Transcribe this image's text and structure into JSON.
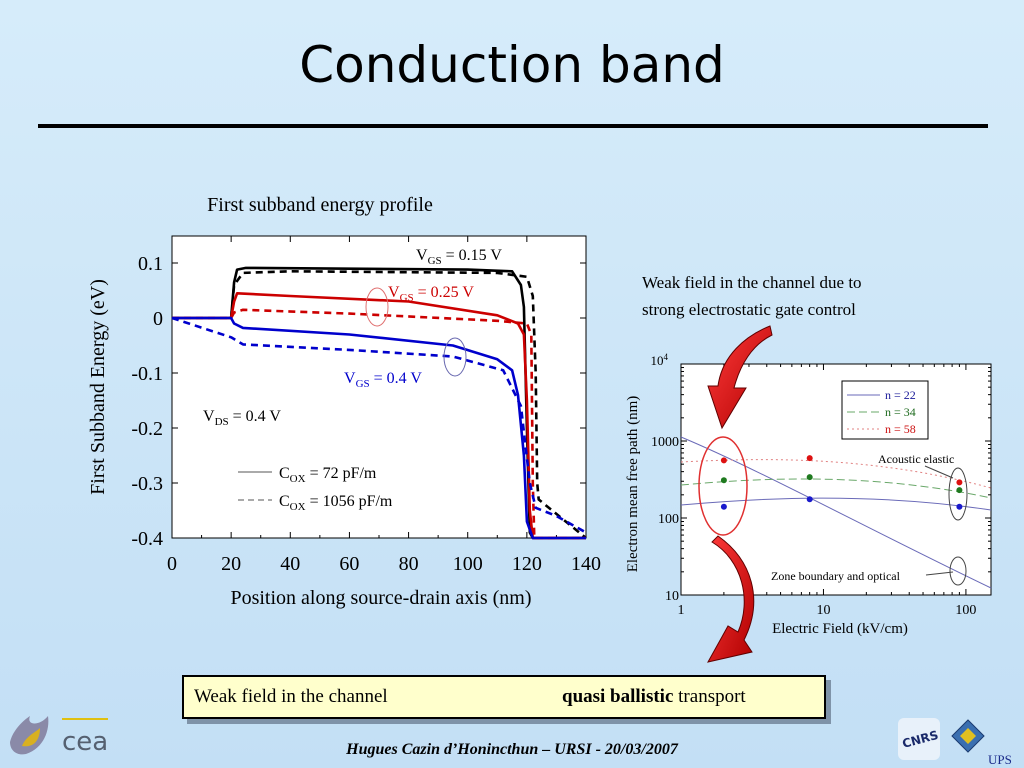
{
  "slide": {
    "title": "Conduction band",
    "footer": "Hugues Cazin d’Honincthun – URSI - 20/03/2007"
  },
  "banner": {
    "left_text": "Weak field in the channel",
    "right_bold": "quasi ballistic",
    "right_text": "transport"
  },
  "logos": {
    "left_logo_text": "cea",
    "right_logo_text": "UPS",
    "cnrs_text": "CNRS"
  },
  "chart_data": [
    {
      "type": "line",
      "title": "First subband energy profile",
      "xlabel": "Position along source-drain axis (nm)",
      "ylabel": "First Subband Energy (eV)",
      "xlim": [
        0,
        140
      ],
      "ylim": [
        -0.4,
        0.12
      ],
      "xticks": [
        "0",
        "20",
        "40",
        "60",
        "80",
        "100",
        "120",
        "140"
      ],
      "yticks": [
        "0.1",
        "0",
        "-0.1",
        "-0.2",
        "-0.3",
        "-0.4"
      ],
      "annotations": {
        "vds": {
          "main": "V",
          "sub": "DS",
          "rest": " = 0.4 V"
        },
        "vgs_015": {
          "main": "V",
          "sub": "GS",
          "rest": " = 0.15 V"
        },
        "vgs_025": {
          "main": "V",
          "sub": "GS",
          "rest": " = 0.25 V"
        },
        "vgs_04": {
          "main": "V",
          "sub": "GS",
          "rest": " = 0.4 V"
        }
      },
      "legend": [
        {
          "main": "C",
          "sub": "OX",
          "rest": " = 72 pF/m",
          "style": "solid"
        },
        {
          "main": "C",
          "sub": "OX",
          "rest": " = 1056 pF/m",
          "style": "dashed"
        }
      ],
      "series": [
        {
          "color": "#000000",
          "dash": false,
          "points": [
            [
              0,
              0
            ],
            [
              20,
              0
            ],
            [
              21,
              0.065
            ],
            [
              22,
              0.088
            ],
            [
              25,
              0.091
            ],
            [
              100,
              0.088
            ],
            [
              115,
              0.085
            ],
            [
              118,
              0.06
            ],
            [
              119,
              0.02
            ],
            [
              120,
              -0.2
            ],
            [
              121,
              -0.39
            ],
            [
              122,
              -0.4
            ],
            [
              140,
              -0.4
            ]
          ]
        },
        {
          "color": "#000000",
          "dash": true,
          "points": [
            [
              0,
              0
            ],
            [
              20,
              0
            ],
            [
              21,
              0.06
            ],
            [
              24,
              0.082
            ],
            [
              40,
              0.085
            ],
            [
              110,
              0.082
            ],
            [
              120,
              0.075
            ],
            [
              122,
              0.04
            ],
            [
              123,
              -0.1
            ],
            [
              123.5,
              -0.3
            ],
            [
              124,
              -0.33
            ],
            [
              140,
              -0.4
            ]
          ]
        },
        {
          "color": "#cc0000",
          "dash": false,
          "points": [
            [
              0,
              0
            ],
            [
              20,
              0
            ],
            [
              21,
              0.03
            ],
            [
              22,
              0.045
            ],
            [
              40,
              0.04
            ],
            [
              80,
              0.03
            ],
            [
              110,
              0.005
            ],
            [
              117,
              -0.01
            ],
            [
              119,
              -0.03
            ],
            [
              120,
              -0.15
            ],
            [
              121,
              -0.35
            ],
            [
              122,
              -0.4
            ],
            [
              140,
              -0.4
            ]
          ]
        },
        {
          "color": "#cc0000",
          "dash": true,
          "points": [
            [
              0,
              0
            ],
            [
              20,
              0
            ],
            [
              21,
              0.01
            ],
            [
              24,
              0.015
            ],
            [
              60,
              0.008
            ],
            [
              110,
              -0.005
            ],
            [
              120,
              -0.01
            ],
            [
              121.5,
              -0.03
            ],
            [
              122,
              -0.3
            ],
            [
              122.5,
              -0.4
            ],
            [
              140,
              -0.4
            ]
          ]
        },
        {
          "color": "#0000cc",
          "dash": false,
          "points": [
            [
              0,
              0
            ],
            [
              20,
              0
            ],
            [
              21,
              -0.01
            ],
            [
              24,
              -0.018
            ],
            [
              60,
              -0.03
            ],
            [
              95,
              -0.05
            ],
            [
              110,
              -0.075
            ],
            [
              115,
              -0.095
            ],
            [
              117,
              -0.14
            ],
            [
              119,
              -0.25
            ],
            [
              120,
              -0.37
            ],
            [
              122,
              -0.4
            ],
            [
              140,
              -0.4
            ]
          ]
        },
        {
          "color": "#0000cc",
          "dash": true,
          "points": [
            [
              0,
              0
            ],
            [
              20,
              -0.035
            ],
            [
              24,
              -0.048
            ],
            [
              60,
              -0.058
            ],
            [
              95,
              -0.07
            ],
            [
              112,
              -0.095
            ],
            [
              118,
              -0.16
            ],
            [
              121,
              -0.3
            ],
            [
              123,
              -0.345
            ],
            [
              130,
              -0.36
            ],
            [
              140,
              -0.39
            ]
          ]
        }
      ]
    },
    {
      "type": "scatter",
      "xlabel": "Electric Field (kV/cm)",
      "ylabel": "Electron mean free path (nm)",
      "xscale": "log",
      "yscale": "log",
      "xlim": [
        1,
        150
      ],
      "ylim": [
        10,
        10000
      ],
      "xticks": [
        "1",
        "10",
        "100"
      ],
      "yticks": [
        "10",
        "100",
        "1000"
      ],
      "ytop_label": {
        "base": "10",
        "exp": "4"
      },
      "annotations": {
        "acoustic": "Acoustic elastic",
        "zone": "Zone boundary and optical"
      },
      "legend": [
        {
          "label": "n = 22",
          "color": "#1a1a99"
        },
        {
          "label": "n = 34",
          "color": "#1f6b1f"
        },
        {
          "label": "n = 58",
          "color": "#cc1111"
        }
      ],
      "points": [
        {
          "series": "n = 22",
          "color": "#1a1acc",
          "x": 2,
          "y": 140
        },
        {
          "series": "n = 34",
          "color": "#1f7a1f",
          "x": 2,
          "y": 310
        },
        {
          "series": "n = 58",
          "color": "#dd1111",
          "x": 2,
          "y": 560
        },
        {
          "series": "n = 22",
          "color": "#1a1acc",
          "x": 8,
          "y": 175
        },
        {
          "series": "n = 34",
          "color": "#1f7a1f",
          "x": 8,
          "y": 340
        },
        {
          "series": "n = 58",
          "color": "#dd1111",
          "x": 8,
          "y": 600
        },
        {
          "series": "n = 22",
          "color": "#1a1acc",
          "x": 90,
          "y": 140
        },
        {
          "series": "n = 34",
          "color": "#1f7a1f",
          "x": 90,
          "y": 230
        },
        {
          "series": "n = 58",
          "color": "#dd1111",
          "x": 90,
          "y": 290
        }
      ]
    }
  ],
  "side_note": {
    "line1": "Weak field in the channel due to",
    "line2": "strong electrostatic gate control"
  }
}
